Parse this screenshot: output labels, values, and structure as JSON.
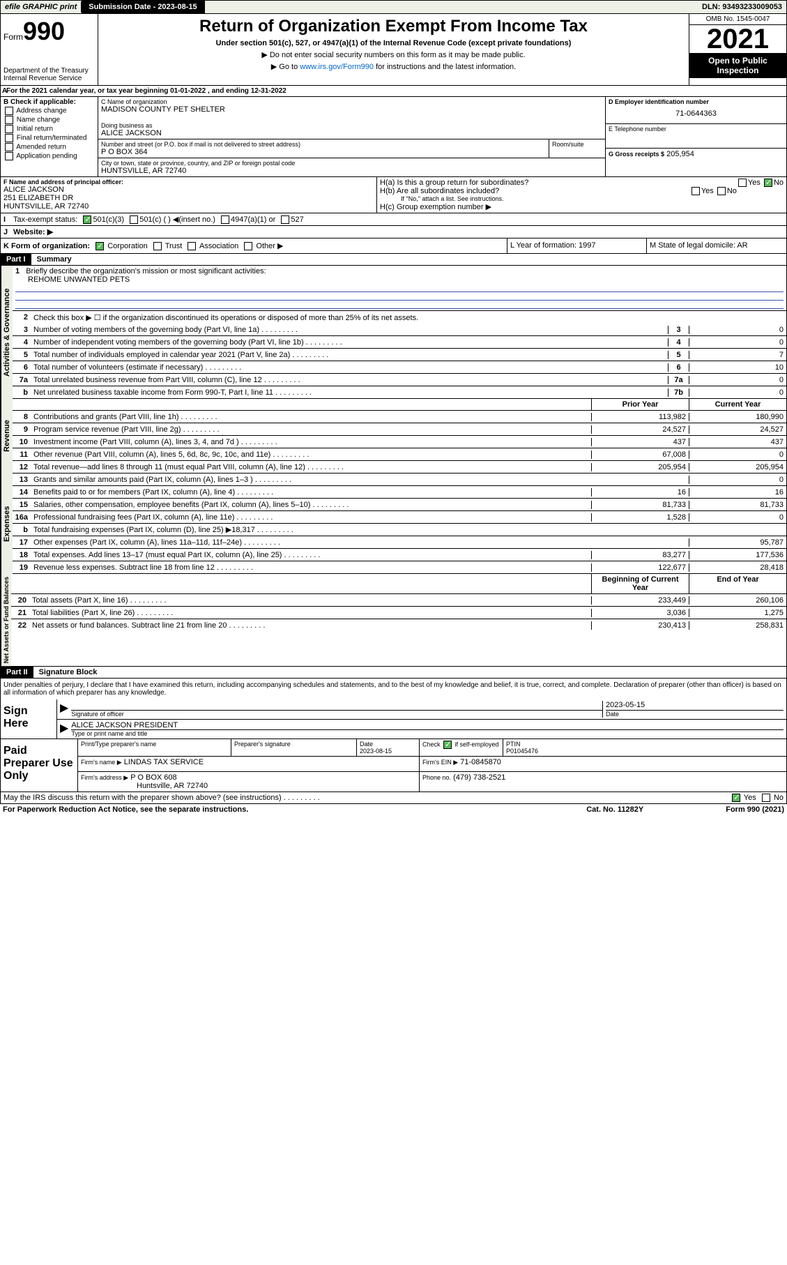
{
  "topbar": {
    "efile": "efile GRAPHIC print",
    "subdate_label": "Submission Date - 2023-08-15",
    "dln": "DLN: 93493233009053"
  },
  "header": {
    "form_label": "Form",
    "form_num": "990",
    "dept": "Department of the Treasury Internal Revenue Service",
    "title": "Return of Organization Exempt From Income Tax",
    "subtitle": "Under section 501(c), 527, or 4947(a)(1) of the Internal Revenue Code (except private foundations)",
    "ssn_line": "Do not enter social security numbers on this form as it may be made public.",
    "goto_pre": "Go to ",
    "goto_link": "www.irs.gov/Form990",
    "goto_post": " for instructions and the latest information.",
    "omb": "OMB No. 1545-0047",
    "year": "2021",
    "open": "Open to Public Inspection"
  },
  "line_a": "For the 2021 calendar year, or tax year beginning 01-01-2022   , and ending 12-31-2022",
  "col_b": {
    "hdr": "B Check if applicable:",
    "opts": [
      "Address change",
      "Name change",
      "Initial return",
      "Final return/terminated",
      "Amended return",
      "Application pending"
    ]
  },
  "entity": {
    "name_lbl": "C Name of organization",
    "name": "MADISON COUNTY PET SHELTER",
    "dba_lbl": "Doing business as",
    "dba": "ALICE JACKSON",
    "addr_lbl": "Number and street (or P.O. box if mail is not delivered to street address)",
    "addr": "P O BOX 364",
    "room_lbl": "Room/suite",
    "city_lbl": "City or town, state or province, country, and ZIP or foreign postal code",
    "city": "HUNTSVILLE, AR  72740",
    "ein_lbl": "D Employer identification number",
    "ein": "71-0644363",
    "phone_lbl": "E Telephone number",
    "gross_lbl": "G Gross receipts $",
    "gross": "205,954"
  },
  "fg": {
    "f_lbl": "F Name and address of principal officer:",
    "f_name": "ALICE JACKSON",
    "f_addr1": "251 ELIZABETH DR",
    "f_addr2": "HUNTSVILLE, AR  72740",
    "ha": "H(a)  Is this a group return for subordinates?",
    "hb": "H(b)  Are all subordinates included?",
    "hb_note": "If \"No,\" attach a list. See instructions.",
    "hc": "H(c)  Group exemption number ▶",
    "yes": "Yes",
    "no": "No"
  },
  "line_i": {
    "lbl": "Tax-exempt status:",
    "opts": [
      "501(c)(3)",
      "501(c) (  ) ◀(insert no.)",
      "4947(a)(1) or",
      "527"
    ]
  },
  "line_j": {
    "lbl": "Website: ▶"
  },
  "line_k": {
    "lbl": "K Form of organization:",
    "opts": [
      "Corporation",
      "Trust",
      "Association",
      "Other ▶"
    ],
    "l": "L Year of formation: 1997",
    "m": "M State of legal domicile: AR"
  },
  "part1": {
    "hdr": "Part I",
    "title": "Summary",
    "q1": "Briefly describe the organization's mission or most significant activities:",
    "mission": "REHOME UNWANTED PETS",
    "q2": "Check this box ▶ ☐  if the organization discontinued its operations or disposed of more than 25% of its net assets.",
    "lines_gov": [
      {
        "n": "3",
        "d": "Number of voting members of the governing body (Part VI, line 1a)",
        "box": "3",
        "v": "0"
      },
      {
        "n": "4",
        "d": "Number of independent voting members of the governing body (Part VI, line 1b)",
        "box": "4",
        "v": "0"
      },
      {
        "n": "5",
        "d": "Total number of individuals employed in calendar year 2021 (Part V, line 2a)",
        "box": "5",
        "v": "7"
      },
      {
        "n": "6",
        "d": "Total number of volunteers (estimate if necessary)",
        "box": "6",
        "v": "10"
      },
      {
        "n": "7a",
        "d": "Total unrelated business revenue from Part VIII, column (C), line 12",
        "box": "7a",
        "v": "0"
      },
      {
        "n": "b",
        "d": "Net unrelated business taxable income from Form 990-T, Part I, line 11",
        "box": "7b",
        "v": "0"
      }
    ],
    "prior_hdr": "Prior Year",
    "curr_hdr": "Current Year",
    "rev": [
      {
        "n": "8",
        "d": "Contributions and grants (Part VIII, line 1h)",
        "p": "113,982",
        "c": "180,990"
      },
      {
        "n": "9",
        "d": "Program service revenue (Part VIII, line 2g)",
        "p": "24,527",
        "c": "24,527"
      },
      {
        "n": "10",
        "d": "Investment income (Part VIII, column (A), lines 3, 4, and 7d )",
        "p": "437",
        "c": "437"
      },
      {
        "n": "11",
        "d": "Other revenue (Part VIII, column (A), lines 5, 6d, 8c, 9c, 10c, and 11e)",
        "p": "67,008",
        "c": "0"
      },
      {
        "n": "12",
        "d": "Total revenue—add lines 8 through 11 (must equal Part VIII, column (A), line 12)",
        "p": "205,954",
        "c": "205,954"
      }
    ],
    "exp": [
      {
        "n": "13",
        "d": "Grants and similar amounts paid (Part IX, column (A), lines 1–3 )",
        "p": "",
        "c": "0"
      },
      {
        "n": "14",
        "d": "Benefits paid to or for members (Part IX, column (A), line 4)",
        "p": "16",
        "c": "16"
      },
      {
        "n": "15",
        "d": "Salaries, other compensation, employee benefits (Part IX, column (A), lines 5–10)",
        "p": "81,733",
        "c": "81,733"
      },
      {
        "n": "16a",
        "d": "Professional fundraising fees (Part IX, column (A), line 11e)",
        "p": "1,528",
        "c": "0"
      },
      {
        "n": "b",
        "d": "Total fundraising expenses (Part IX, column (D), line 25) ▶18,317",
        "p": "shade",
        "c": "shade"
      },
      {
        "n": "17",
        "d": "Other expenses (Part IX, column (A), lines 11a–11d, 11f–24e)",
        "p": "",
        "c": "95,787"
      },
      {
        "n": "18",
        "d": "Total expenses. Add lines 13–17 (must equal Part IX, column (A), line 25)",
        "p": "83,277",
        "c": "177,536"
      },
      {
        "n": "19",
        "d": "Revenue less expenses. Subtract line 18 from line 12",
        "p": "122,677",
        "c": "28,418"
      }
    ],
    "bal_hdr1": "Beginning of Current Year",
    "bal_hdr2": "End of Year",
    "bal": [
      {
        "n": "20",
        "d": "Total assets (Part X, line 16)",
        "p": "233,449",
        "c": "260,106"
      },
      {
        "n": "21",
        "d": "Total liabilities (Part X, line 26)",
        "p": "3,036",
        "c": "1,275"
      },
      {
        "n": "22",
        "d": "Net assets or fund balances. Subtract line 21 from line 20",
        "p": "230,413",
        "c": "258,831"
      }
    ],
    "vert_gov": "Activities & Governance",
    "vert_rev": "Revenue",
    "vert_exp": "Expenses",
    "vert_bal": "Net Assets or Fund Balances"
  },
  "part2": {
    "hdr": "Part II",
    "title": "Signature Block",
    "decl": "Under penalties of perjury, I declare that I have examined this return, including accompanying schedules and statements, and to the best of my knowledge and belief, it is true, correct, and complete. Declaration of preparer (other than officer) is based on all information of which preparer has any knowledge.",
    "sign_here": "Sign Here",
    "sig_officer": "Signature of officer",
    "sig_date": "2023-05-15",
    "date_lbl": "Date",
    "officer_name": "ALICE JACKSON PRESIDENT",
    "type_name": "Type or print name and title",
    "paid_prep": "Paid Preparer Use Only",
    "prep_name_lbl": "Print/Type preparer's name",
    "prep_sig_lbl": "Preparer's signature",
    "prep_date_lbl": "Date",
    "prep_date": "2023-08-15",
    "check_lbl": "Check ☑ if self-employed",
    "ptin_lbl": "PTIN",
    "ptin": "P01045476",
    "firm_name_lbl": "Firm's name    ▶",
    "firm_name": "LINDAS TAX SERVICE",
    "firm_ein_lbl": "Firm's EIN ▶",
    "firm_ein": "71-0845870",
    "firm_addr_lbl": "Firm's address ▶",
    "firm_addr1": "P O BOX 608",
    "firm_addr2": "Huntsville, AR  72740",
    "firm_phone_lbl": "Phone no.",
    "firm_phone": "(479) 738-2521",
    "may_irs": "May the IRS discuss this return with the preparer shown above? (see instructions)"
  },
  "footer": {
    "pra": "For Paperwork Reduction Act Notice, see the separate instructions.",
    "cat": "Cat. No. 11282Y",
    "form": "Form 990 (2021)"
  }
}
